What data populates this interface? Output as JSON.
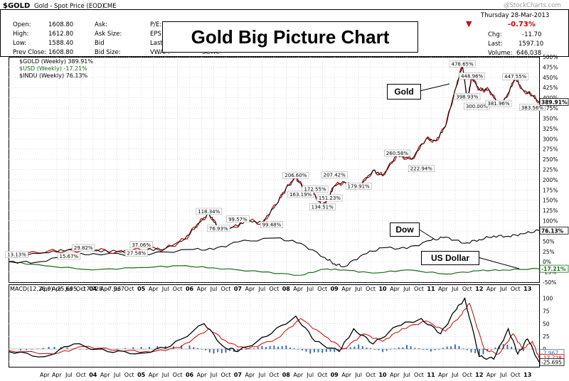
{
  "header": {
    "symbol": "$GOLD",
    "description": "Gold - Spot Price (EOD)",
    "exchange": "CME",
    "watermark": "@StockCharts.com",
    "date": "Thursday  28-Mar-2013",
    "quote": {
      "open_label": "Open:",
      "open": "1608.80",
      "high_label": "High:",
      "high": "1612.80",
      "low_label": "Low:",
      "low": "1588.40",
      "prev_label": "Prev Close:",
      "prev": "1608.80",
      "ask_label": "Ask:",
      "ask_size_label": "Ask Size:",
      "bid_label": "Bid",
      "bid_size_label": "Bid Size:",
      "pe_label": "P/E:",
      "eps_label": "EPS",
      "last_trade_label": "Last",
      "vwap_label": "VWAP:",
      "sctr_label": "SCTR:",
      "pct_change": "-0.73%",
      "chg_label": "Chg:",
      "chg": "-11.70",
      "last_label": "Last:",
      "last": "1597.10",
      "volume_label": "Volume:",
      "volume": "646,038"
    },
    "down_arrow": "▼",
    "big_title": "Gold Big Picture Chart"
  },
  "legend": {
    "gold": "$GOLD (Weekly) 389.91%",
    "usd": "$USD (Weekly) -17.21%",
    "indu": "$INDU (Weekly) 76.13%"
  },
  "callouts": {
    "gold": "Gold",
    "dow": "Dow",
    "usd": "US Dollar"
  },
  "colors": {
    "gold_line": "#000000",
    "gold_candle": "#cc0000",
    "dow": "#000000",
    "usd": "#1a6b1a",
    "macd": "#000000",
    "signal": "#cc0000",
    "hist": "#3a6fb0",
    "grid": "#c8c8c8",
    "down": "#cc0000"
  },
  "chart_data": [
    {
      "type": "line",
      "title": "Gold Big Picture Chart",
      "ylabel": "% change",
      "ylim": [
        -50,
        500
      ],
      "yticks": [
        -50,
        -25,
        0,
        25,
        50,
        75,
        100,
        125,
        150,
        175,
        200,
        225,
        250,
        275,
        300,
        325,
        350,
        375,
        400,
        425,
        450,
        475,
        500
      ],
      "x_range": [
        2002.25,
        2013.24
      ],
      "x_tick_labels": [
        "Apr",
        "Jul",
        "Oct",
        "04",
        "Apr",
        "Jul",
        "Oct",
        "05",
        "Apr",
        "Jul",
        "Oct",
        "06",
        "Apr",
        "Jul",
        "Oct",
        "07",
        "Apr",
        "Jul",
        "Oct",
        "08",
        "Apr",
        "Jul",
        "Oct",
        "09",
        "Apr",
        "Jul",
        "Oct",
        "10",
        "Apr",
        "Jul",
        "Oct",
        "11",
        "Apr",
        "Jul",
        "Oct",
        "12",
        "Apr",
        "Jul",
        "Oct",
        "13"
      ],
      "series": [
        {
          "name": "$GOLD (Weekly)",
          "last_value": 389.91,
          "x": [
            2002.25,
            2003.0,
            2003.5,
            2004.0,
            2004.5,
            2005.0,
            2005.5,
            2005.9,
            2006.2,
            2006.4,
            2006.6,
            2006.9,
            2007.2,
            2007.5,
            2007.8,
            2008.0,
            2008.2,
            2008.4,
            2008.6,
            2008.75,
            2008.85,
            2009.0,
            2009.2,
            2009.5,
            2009.8,
            2010.0,
            2010.3,
            2010.6,
            2010.9,
            2011.1,
            2011.3,
            2011.5,
            2011.65,
            2011.75,
            2011.85,
            2012.0,
            2012.2,
            2012.4,
            2012.55,
            2012.75,
            2012.9,
            2013.1,
            2013.24
          ],
          "values": [
            13.13,
            22,
            29.82,
            27,
            25,
            28,
            32,
            55,
            95,
            118.34,
            80,
            85,
            99.57,
            95,
            140,
            180,
            206.6,
            172.55,
            163.19,
            134.51,
            151.23,
            185,
            195,
            179.91,
            222.94,
            210,
            260.58,
            250,
            300,
            295,
            330,
            420,
            478.65,
            398.93,
            448.96,
            420,
            420,
            381.96,
            400,
            447.55,
            420,
            405,
            389.91
          ]
        },
        {
          "name": "$INDU (Weekly)",
          "last_value": 76.13,
          "x": [
            2002.25,
            2002.8,
            2003.5,
            2004.0,
            2005.0,
            2006.0,
            2006.5,
            2007.0,
            2007.8,
            2008.3,
            2008.8,
            2009.0,
            2009.2,
            2009.6,
            2010.0,
            2010.5,
            2011.0,
            2011.3,
            2011.7,
            2012.0,
            2012.3,
            2012.6,
            2012.9,
            2013.24
          ],
          "values": [
            0,
            -2,
            15,
            20,
            17,
            30,
            30,
            48,
            58,
            45,
            10,
            -5,
            -12,
            18,
            34,
            32,
            52,
            60,
            45,
            54,
            63,
            62,
            68,
            76.13
          ]
        },
        {
          "name": "$USD (Weekly)",
          "last_value": -17.21,
          "x": [
            2002.25,
            2003.0,
            2004.0,
            2005.0,
            2005.8,
            2006.5,
            2007.5,
            2008.3,
            2008.8,
            2009.2,
            2009.8,
            2010.5,
            2011.3,
            2012.0,
            2012.5,
            2013.24
          ],
          "values": [
            0,
            -10,
            -20,
            -14,
            -10,
            -15,
            -25,
            -33,
            -18,
            -20,
            -28,
            -20,
            -30,
            -22,
            -20,
            -17.21
          ]
        }
      ],
      "annotations": [
        "478.65%",
        "448.96%",
        "447.55%",
        "398.93%",
        "300.00%",
        "381.96%",
        "383.56%",
        "260.58%",
        "222.94%",
        "206.60%",
        "207.42%",
        "172.55%",
        "163.19%",
        "151.23%",
        "134.51%",
        "179.91%",
        "118.34%",
        "99.57%",
        "99.48%",
        "76.93%",
        "37.06%",
        "29.82%",
        "27.58%",
        "15.67%",
        "13.13%"
      ]
    },
    {
      "type": "line",
      "title": "MACD(12,26,9) -25.695, -17.728, -7.967",
      "ylim": [
        -35,
        112
      ],
      "yticks": [
        -25,
        0,
        25,
        50,
        75,
        100
      ],
      "series": [
        {
          "name": "MACD",
          "last_value": -25.695,
          "x": [
            2002.25,
            2003.0,
            2003.6,
            2004.3,
            2005.0,
            2005.6,
            2006.3,
            2006.7,
            2007.0,
            2007.6,
            2008.2,
            2008.6,
            2009.1,
            2009.4,
            2009.8,
            2010.3,
            2010.8,
            2011.2,
            2011.5,
            2011.7,
            2012.0,
            2012.3,
            2012.6,
            2012.8,
            2013.0,
            2013.24
          ],
          "values": [
            -5,
            -15,
            10,
            -5,
            -8,
            5,
            50,
            5,
            -5,
            25,
            65,
            15,
            -5,
            40,
            10,
            45,
            60,
            30,
            75,
            100,
            -15,
            -20,
            40,
            -10,
            20,
            -25.695
          ]
        },
        {
          "name": "Signal",
          "last_value": -17.728,
          "x": [
            2002.25,
            2003.2,
            2003.8,
            2004.5,
            2005.2,
            2005.8,
            2006.4,
            2006.8,
            2007.2,
            2007.8,
            2008.3,
            2008.8,
            2009.2,
            2009.6,
            2010.0,
            2010.4,
            2010.9,
            2011.3,
            2011.6,
            2011.8,
            2012.1,
            2012.4,
            2012.7,
            2012.9,
            2013.1,
            2013.24
          ],
          "values": [
            -3,
            -10,
            5,
            -2,
            -6,
            3,
            40,
            12,
            0,
            20,
            60,
            25,
            0,
            30,
            15,
            40,
            55,
            35,
            65,
            90,
            0,
            -10,
            30,
            0,
            15,
            -17.728
          ]
        },
        {
          "name": "Histogram",
          "last_value": -7.967,
          "x": [
            2002.5,
            2003.2,
            2004.0,
            2005.0,
            2006.0,
            2006.5,
            2007.0,
            2007.5,
            2008.0,
            2008.5,
            2009.0,
            2009.5,
            2010.0,
            2010.5,
            2011.0,
            2011.5,
            2012.0,
            2012.5,
            2013.0
          ],
          "values": [
            -4,
            6,
            -3,
            5,
            8,
            -10,
            -5,
            6,
            7,
            -9,
            -6,
            9,
            -6,
            8,
            -5,
            10,
            -15,
            12,
            -7.967
          ]
        }
      ]
    }
  ]
}
